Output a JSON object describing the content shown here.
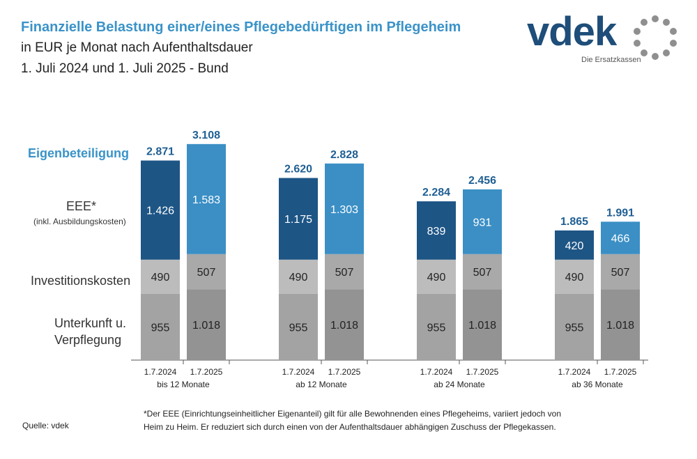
{
  "header": {
    "title": "Finanzielle Belastung einer/eines Pflegebedürftigen im Pflegeheim",
    "subtitle1": "in EUR je Monat nach Aufenthaltsdauer",
    "subtitle2": "1. Juli 2024 und 1. Juli 2025 - Bund"
  },
  "logo": {
    "text": "vdek",
    "tagline": "Die Ersatzkassen"
  },
  "row_labels": {
    "eigen": "Eigenbeteiligung",
    "eee": "EEE*",
    "eee_sub": "(inkl. Ausbildungskosten)",
    "inv": "Investitionskosten",
    "unterkunft": "Unterkunft u.",
    "verpflegung": "Verpflegung"
  },
  "chart_data": {
    "type": "bar",
    "stacked": true,
    "groups": [
      "bis 12 Monate",
      "ab 12 Monate",
      "ab 24 Monate",
      "ab 36 Monate"
    ],
    "categories": [
      "1.7.2024",
      "1.7.2025"
    ],
    "series": [
      {
        "name": "Unterkunft u. Verpflegung",
        "values": [
          [
            955,
            1018
          ],
          [
            955,
            1018
          ],
          [
            955,
            1018
          ],
          [
            955,
            1018
          ]
        ],
        "labels": [
          [
            "955",
            "1.018"
          ],
          [
            "955",
            "1.018"
          ],
          [
            "955",
            "1.018"
          ],
          [
            "955",
            "1.018"
          ]
        ]
      },
      {
        "name": "Investitionskosten",
        "values": [
          [
            490,
            507
          ],
          [
            490,
            507
          ],
          [
            490,
            507
          ],
          [
            490,
            507
          ]
        ],
        "labels": [
          [
            "490",
            "507"
          ],
          [
            "490",
            "507"
          ],
          [
            "490",
            "507"
          ],
          [
            "490",
            "507"
          ]
        ]
      },
      {
        "name": "EEE* (inkl. Ausbildungskosten)",
        "values": [
          [
            1426,
            1583
          ],
          [
            1175,
            1303
          ],
          [
            839,
            931
          ],
          [
            420,
            466
          ]
        ],
        "labels": [
          [
            "1.426",
            "1.583"
          ],
          [
            "1.175",
            "1.303"
          ],
          [
            "839",
            "931"
          ],
          [
            "420",
            "466"
          ]
        ]
      }
    ],
    "totals": [
      [
        2871,
        3108
      ],
      [
        2620,
        2828
      ],
      [
        2284,
        2456
      ],
      [
        1865,
        1991
      ]
    ],
    "total_labels": [
      [
        "2.871",
        "3.108"
      ],
      [
        "2.620",
        "2.828"
      ],
      [
        "2.284",
        "2.456"
      ],
      [
        "1.865",
        "1.991"
      ]
    ],
    "colors": {
      "eee_2024": "#1d5585",
      "eee_2025": "#3b8fc5",
      "inv_2024": "#bcbcbc",
      "inv_2025": "#a9a9a9",
      "unt_2024": "#a3a3a3",
      "unt_2025": "#939393",
      "total_label": "#1f5f93"
    },
    "grid": false,
    "legend": "left-row-labels"
  },
  "footnote": {
    "line1": "*Der EEE (Einrichtungseinheitlicher Eigenanteil) gilt für alle Bewohnenden eines Pflegeheims, variiert jedoch von",
    "line2": "Heim zu Heim. Er reduziert sich durch einen von der Aufenthaltsdauer abhängigen Zuschuss der Pflegekassen."
  },
  "source": "Quelle: vdek"
}
